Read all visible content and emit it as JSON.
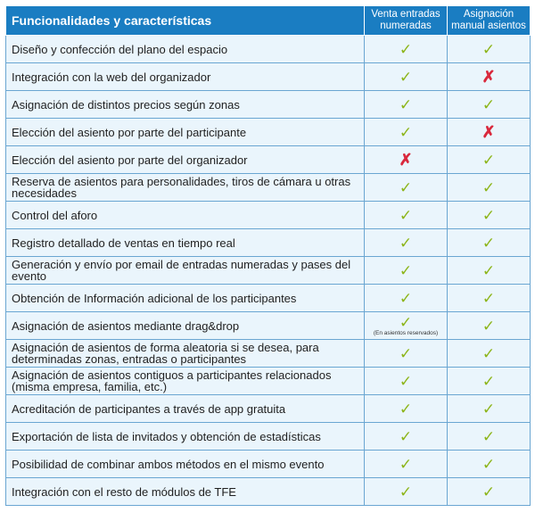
{
  "header": {
    "feature_col": "Funcionalidades y características",
    "col1_line1": "Venta entradas",
    "col1_line2": "numeradas",
    "col2_line1": "Asignación",
    "col2_line2": "manual asientos"
  },
  "symbols": {
    "check": "✓",
    "cross": "✗",
    "check_color": "#8db51a",
    "cross_color": "#d9283c",
    "header_color": "#1a7dc2"
  },
  "rows": [
    {
      "feature": "Diseño y confección del plano del espacio",
      "col1": "✓",
      "col2": "✓"
    },
    {
      "feature": "Integración con la web del organizador",
      "col1": "✓",
      "col2": "✗"
    },
    {
      "feature": "Asignación de distintos precios según zonas",
      "col1": "✓",
      "col2": "✓"
    },
    {
      "feature": "Elección del asiento por parte del participante",
      "col1": "✓",
      "col2": "✗"
    },
    {
      "feature": "Elección del asiento por parte del organizador",
      "col1": "✗",
      "col2": "✓"
    },
    {
      "feature": "Reserva de asientos para personalidades, tiros de cámara u otras necesidades",
      "col1": "✓",
      "col2": "✓"
    },
    {
      "feature": "Control del aforo",
      "col1": "✓",
      "col2": "✓"
    },
    {
      "feature": "Registro detallado de ventas en tiempo real",
      "col1": "✓",
      "col2": "✓"
    },
    {
      "feature": "Generación y envío por email de entradas numeradas y pases del evento",
      "col1": "✓",
      "col2": "✓"
    },
    {
      "feature": "Obtención de Información adicional de los participantes",
      "col1": "✓",
      "col2": "✓"
    },
    {
      "feature": "Asignación de asientos mediante drag&drop",
      "col1": "✓",
      "col1_note": "(En asientos reservados)",
      "col2": "✓"
    },
    {
      "feature": "Asignación de asientos de forma aleatoria si se desea, para determinadas zonas, entradas o participantes",
      "col1": "✓",
      "col2": "✓"
    },
    {
      "feature": "Asignación de asientos contiguos a participantes relacionados (misma empresa, familia, etc.)",
      "col1": "✓",
      "col2": "✓"
    },
    {
      "feature": "Acreditación de participantes a través de app gratuita",
      "col1": "✓",
      "col2": "✓"
    },
    {
      "feature": "Exportación de lista de invitados y obtención de estadísticas",
      "col1": "✓",
      "col2": "✓"
    },
    {
      "feature": "Posibilidad de combinar ambos métodos en el mismo evento",
      "col1": "✓",
      "col2": "✓"
    },
    {
      "feature": "Integración con el resto de módulos de TFE",
      "col1": "✓",
      "col2": "✓"
    }
  ]
}
